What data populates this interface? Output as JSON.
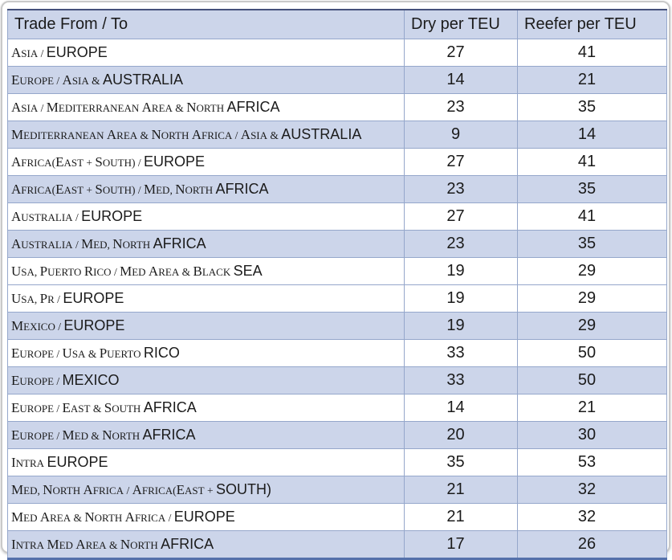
{
  "table": {
    "columns": [
      "Trade From / To",
      "Dry per TEU",
      "Reefer per TEU"
    ],
    "rows": [
      {
        "route": "ASIA / EUROPE",
        "dry": "27",
        "reefer": "41",
        "shaded": false
      },
      {
        "route": "EUROPE / ASIA & AUSTRALIA",
        "dry": "14",
        "reefer": "21",
        "shaded": true
      },
      {
        "route": "ASIA / MEDITERRANEAN AREA & NORTH AFRICA",
        "dry": "23",
        "reefer": "35",
        "shaded": false
      },
      {
        "route": "MEDITERRANEAN AREA & NORTH AFRICA / ASIA & AUSTRALIA",
        "dry": "9",
        "reefer": "14",
        "shaded": true
      },
      {
        "route": "AFRICA(EAST + SOUTH) / EUROPE",
        "dry": "27",
        "reefer": "41",
        "shaded": false
      },
      {
        "route": "AFRICA(EAST + SOUTH) / MED, NORTH AFRICA",
        "dry": "23",
        "reefer": "35",
        "shaded": true
      },
      {
        "route": "AUSTRALIA / EUROPE",
        "dry": "27",
        "reefer": "41",
        "shaded": false
      },
      {
        "route": "AUSTRALIA / MED, NORTH AFRICA",
        "dry": "23",
        "reefer": "35",
        "shaded": true
      },
      {
        "route": "USA, PUERTO RICO / MED AREA & BLACK SEA",
        "dry": "19",
        "reefer": "29",
        "shaded": false
      },
      {
        "route": "USA, PR / EUROPE",
        "dry": "19",
        "reefer": "29",
        "shaded": false
      },
      {
        "route": "MEXICO / EUROPE",
        "dry": "19",
        "reefer": "29",
        "shaded": true
      },
      {
        "route": "EUROPE / USA & PUERTO RICO",
        "dry": "33",
        "reefer": "50",
        "shaded": false
      },
      {
        "route": "EUROPE / MEXICO",
        "dry": "33",
        "reefer": "50",
        "shaded": true
      },
      {
        "route": "EUROPE / EAST & SOUTH AFRICA",
        "dry": "14",
        "reefer": "21",
        "shaded": false
      },
      {
        "route": "EUROPE / MED & NORTH AFRICA",
        "dry": "20",
        "reefer": "30",
        "shaded": true
      },
      {
        "route": "INTRA EUROPE",
        "dry": "35",
        "reefer": "53",
        "shaded": false
      },
      {
        "route": "MED, NORTH AFRICA / AFRICA(EAST + SOUTH)",
        "dry": "21",
        "reefer": "32",
        "shaded": true
      },
      {
        "route": "MED AREA & NORTH AFRICA / EUROPE",
        "dry": "21",
        "reefer": "32",
        "shaded": false
      },
      {
        "route": "INTRA MED AREA & NORTH AFRICA",
        "dry": "17",
        "reefer": "26",
        "shaded": true
      }
    ]
  },
  "colors": {
    "shaded_row_bg": "#ccd5ea",
    "grid_line": "#95a7cb",
    "outer_top_border": "#44517b",
    "outer_bottom_border": "#5571ab",
    "outer_right_border": "#7e96c0",
    "frame_border": "#c9c9c9",
    "text": "#1b1b1b"
  }
}
